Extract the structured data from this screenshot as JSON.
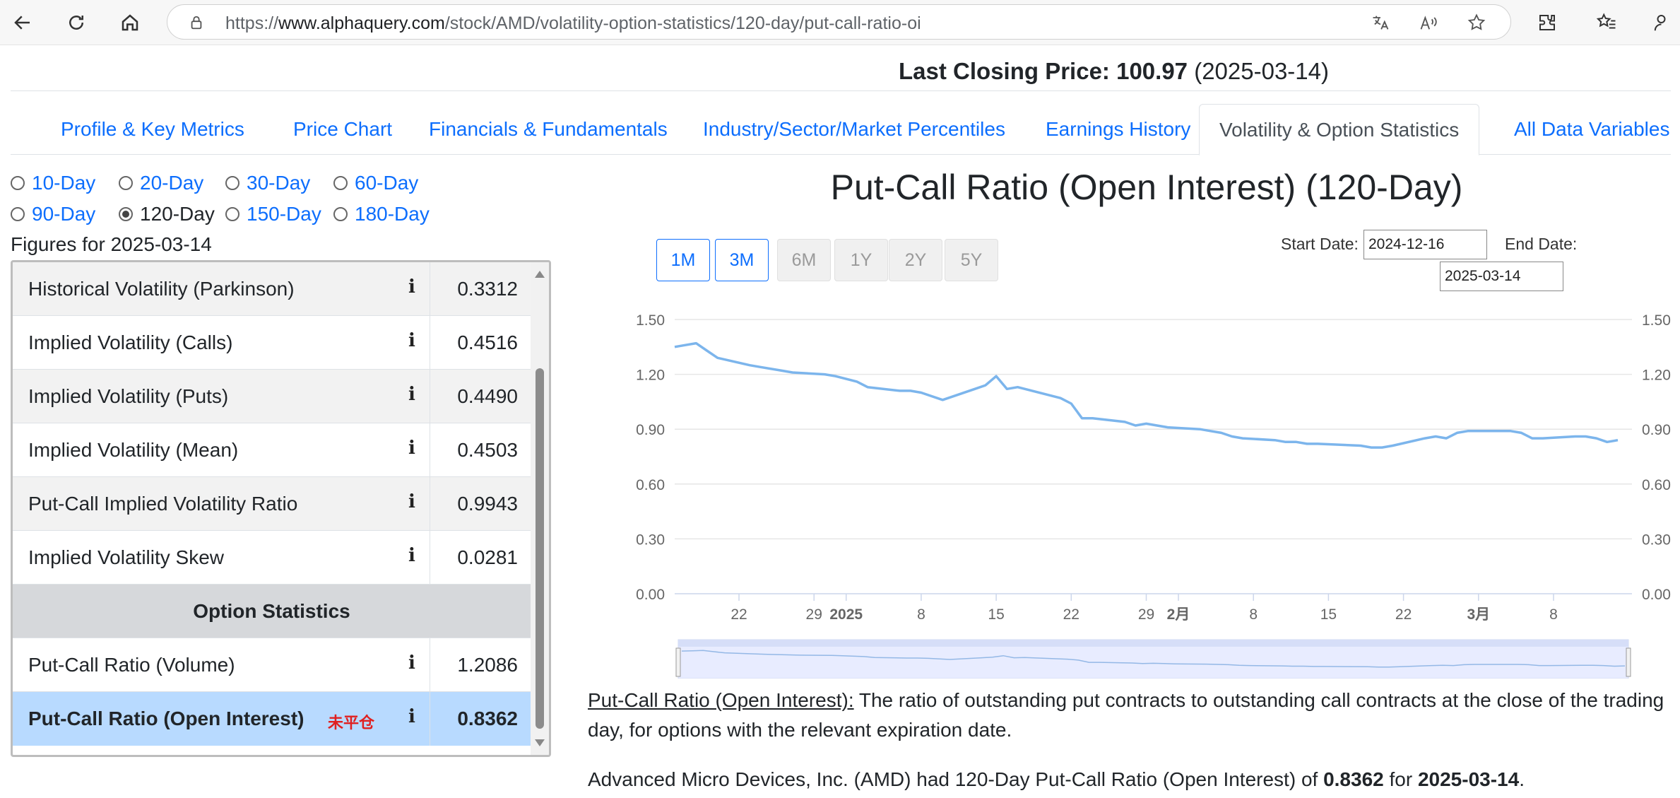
{
  "browser": {
    "url_prefix": "https://",
    "url_host": "www.alphaquery.com",
    "url_path": "/stock/AMD/volatility-option-statistics/120-day/put-call-ratio-oi"
  },
  "price": {
    "label": "Last Closing Price:",
    "value": "100.97",
    "date": "(2025-03-14)"
  },
  "tabs": [
    {
      "label": "Profile & Key Metrics"
    },
    {
      "label": "Price Chart"
    },
    {
      "label": "Financials & Fundamentals"
    },
    {
      "label": "Industry/Sector/Market Percentiles"
    },
    {
      "label": "Earnings History"
    },
    {
      "label": "Volatility & Option Statistics"
    },
    {
      "label": "All Data Variables"
    }
  ],
  "periods": [
    {
      "label": "10-Day"
    },
    {
      "label": "20-Day"
    },
    {
      "label": "30-Day"
    },
    {
      "label": "60-Day"
    },
    {
      "label": "90-Day"
    },
    {
      "label": "120-Day"
    },
    {
      "label": "150-Day"
    },
    {
      "label": "180-Day"
    }
  ],
  "figures_label": "Figures for 2025-03-14",
  "stats": [
    {
      "label": "Historical Volatility (Parkinson)",
      "value": "0.3312"
    },
    {
      "label": "Implied Volatility (Calls)",
      "value": "0.4516"
    },
    {
      "label": "Implied Volatility (Puts)",
      "value": "0.4490"
    },
    {
      "label": "Implied Volatility (Mean)",
      "value": "0.4503"
    },
    {
      "label": "Put-Call Implied Volatility Ratio",
      "value": "0.9943"
    },
    {
      "label": "Implied Volatility Skew",
      "value": "0.0281"
    }
  ],
  "option_stats_header": "Option Statistics",
  "option_stats": [
    {
      "label": "Put-Call Ratio (Volume)",
      "value": "1.2086"
    },
    {
      "label": "Put-Call Ratio (Open Interest)",
      "value": "0.8362",
      "badge": "未平仓"
    }
  ],
  "info_glyph": "i",
  "range_buttons": [
    {
      "label": "1M"
    },
    {
      "label": "3M"
    },
    {
      "label": "6M"
    },
    {
      "label": "1Y"
    },
    {
      "label": "2Y"
    },
    {
      "label": "5Y"
    }
  ],
  "dates": {
    "start_label": "Start Date:",
    "start_value": "2024-12-16",
    "end_label": "End Date:",
    "end_value": "2025-03-14"
  },
  "chart_data": {
    "type": "line",
    "title": "Put-Call Ratio (Open Interest) (120-Day)",
    "ylim": [
      0,
      1.5
    ],
    "yticks": [
      "0.00",
      "0.30",
      "0.60",
      "0.90",
      "1.20",
      "1.50"
    ],
    "xticks": [
      "22",
      "29",
      "2025",
      "8",
      "15",
      "22",
      "29",
      "2月",
      "8",
      "15",
      "22",
      "3月",
      "8"
    ],
    "grid": true,
    "line_color": "#7cb5ec",
    "x": [
      "2024-12-16",
      "2024-12-17",
      "2024-12-18",
      "2024-12-19",
      "2024-12-20",
      "2024-12-23",
      "2024-12-24",
      "2024-12-26",
      "2024-12-27",
      "2024-12-30",
      "2024-12-31",
      "2025-01-02",
      "2025-01-03",
      "2025-01-06",
      "2025-01-07",
      "2025-01-08",
      "2025-01-10",
      "2025-01-13",
      "2025-01-14",
      "2025-01-15",
      "2025-01-16",
      "2025-01-17",
      "2025-01-21",
      "2025-01-22",
      "2025-01-23",
      "2025-01-24",
      "2025-01-27",
      "2025-01-28",
      "2025-01-29",
      "2025-01-30",
      "2025-01-31",
      "2025-02-03",
      "2025-02-04",
      "2025-02-05",
      "2025-02-06",
      "2025-02-07",
      "2025-02-10",
      "2025-02-11",
      "2025-02-12",
      "2025-02-13",
      "2025-02-14",
      "2025-02-18",
      "2025-02-19",
      "2025-02-20",
      "2025-02-21",
      "2025-02-24",
      "2025-02-25",
      "2025-02-26",
      "2025-02-27",
      "2025-02-28",
      "2025-03-03",
      "2025-03-04",
      "2025-03-05",
      "2025-03-06",
      "2025-03-07",
      "2025-03-10",
      "2025-03-11",
      "2025-03-12",
      "2025-03-13",
      "2025-03-14"
    ],
    "values": [
      1.35,
      1.36,
      1.37,
      1.33,
      1.29,
      1.25,
      1.24,
      1.22,
      1.21,
      1.2,
      1.19,
      1.16,
      1.13,
      1.11,
      1.11,
      1.1,
      1.06,
      1.12,
      1.14,
      1.19,
      1.12,
      1.13,
      1.07,
      1.04,
      0.96,
      0.96,
      0.94,
      0.92,
      0.93,
      0.92,
      0.91,
      0.9,
      0.89,
      0.88,
      0.86,
      0.85,
      0.84,
      0.83,
      0.83,
      0.82,
      0.82,
      0.81,
      0.8,
      0.8,
      0.81,
      0.85,
      0.86,
      0.85,
      0.88,
      0.89,
      0.89,
      0.89,
      0.88,
      0.85,
      0.85,
      0.86,
      0.86,
      0.85,
      0.83,
      0.84
    ]
  },
  "description": {
    "term": "Put-Call Ratio (Open Interest):",
    "text": " The ratio of outstanding put contracts to outstanding call contracts at the close of the trading day, for options with the relevant expiration date.",
    "line2_prefix": "Advanced Micro Devices, Inc. (AMD) had 120-Day Put-Call Ratio (Open Interest) of ",
    "line2_value": "0.8362",
    "line2_mid": " for ",
    "line2_date": "2025-03-14",
    "line2_end": "."
  }
}
